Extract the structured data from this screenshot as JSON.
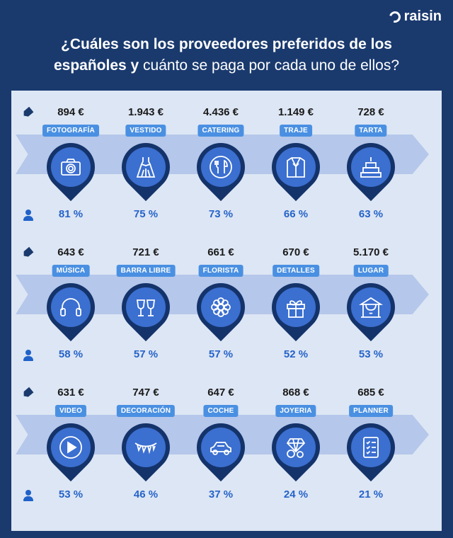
{
  "brand": {
    "name": "raisin"
  },
  "header": {
    "title_bold_1": "¿Cuáles son los proveedores preferidos de los",
    "title_bold_2": "españoles y",
    "title_regular": " cuánto se paga por cada uno de ellos?"
  },
  "colors": {
    "background": "#1a3a6e",
    "panel": "#dde6f4",
    "band": "#b5c7ea",
    "label": "#4a90e2",
    "pin": "#14336a",
    "pin_inner": "#3b6fd0",
    "percent": "#2563c9"
  },
  "rows": [
    {
      "items": [
        {
          "price": "894 €",
          "label": "FOTOGRAFÍA",
          "icon": "camera-icon",
          "percent": "81 %"
        },
        {
          "price": "1.943 €",
          "label": "VESTIDO",
          "icon": "dress-icon",
          "percent": "75 %"
        },
        {
          "price": "4.436 €",
          "label": "CATERING",
          "icon": "cutlery-icon",
          "percent": "73 %"
        },
        {
          "price": "1.149 €",
          "label": "TRAJE",
          "icon": "suit-icon",
          "percent": "66 %"
        },
        {
          "price": "728 €",
          "label": "TARTA",
          "icon": "cake-icon",
          "percent": "63 %"
        }
      ]
    },
    {
      "items": [
        {
          "price": "643 €",
          "label": "MÚSICA",
          "icon": "headphones-icon",
          "percent": "58 %"
        },
        {
          "price": "721 €",
          "label": "BARRA LIBRE",
          "icon": "wine-glasses-icon",
          "percent": "57 %"
        },
        {
          "price": "661 €",
          "label": "FLORISTA",
          "icon": "flower-icon",
          "percent": "57 %"
        },
        {
          "price": "670 €",
          "label": "DETALLES",
          "icon": "gift-icon",
          "percent": "52 %"
        },
        {
          "price": "5.170 €",
          "label": "LUGAR",
          "icon": "venue-icon",
          "percent": "53 %"
        }
      ]
    },
    {
      "items": [
        {
          "price": "631 €",
          "label": "VIDEO",
          "icon": "play-icon",
          "percent": "53 %"
        },
        {
          "price": "747 €",
          "label": "DECORACIÓN",
          "icon": "bunting-icon",
          "percent": "46 %"
        },
        {
          "price": "647 €",
          "label": "COCHE",
          "icon": "car-icon",
          "percent": "37 %"
        },
        {
          "price": "868 €",
          "label": "JOYERIA",
          "icon": "rings-icon",
          "percent": "24 %"
        },
        {
          "price": "685 €",
          "label": "PLANNER",
          "icon": "checklist-icon",
          "percent": "21 %"
        }
      ]
    }
  ]
}
